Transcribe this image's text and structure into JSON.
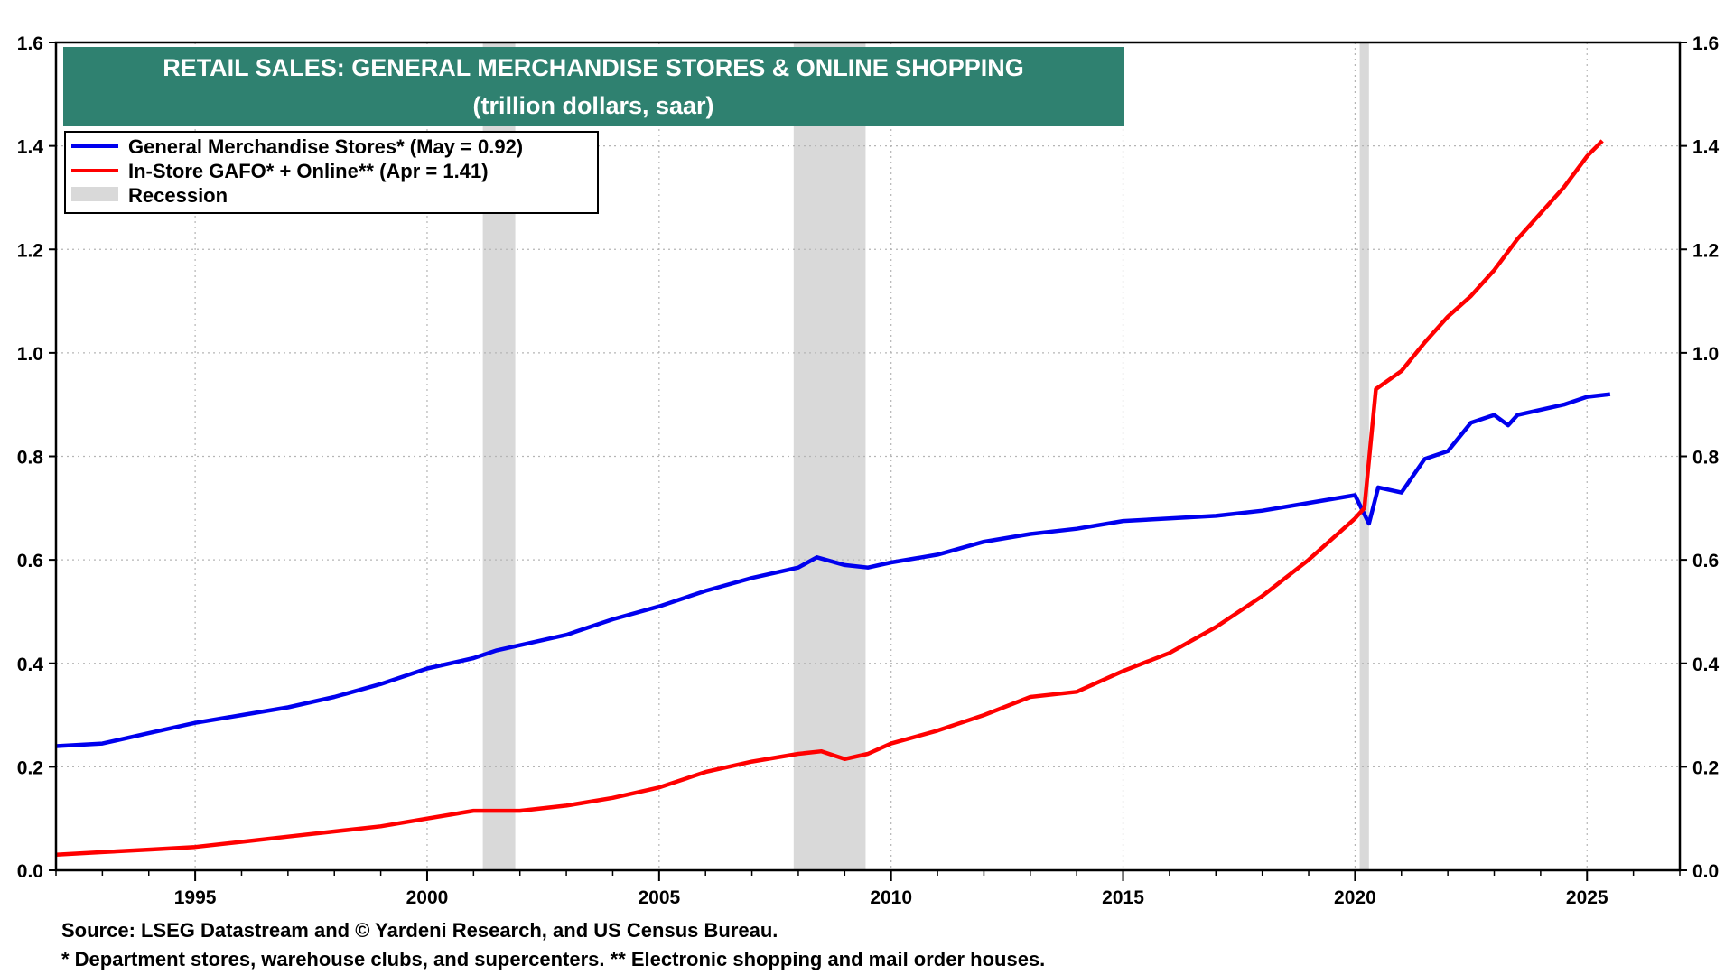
{
  "chart_data": {
    "type": "line",
    "title": "RETAIL SALES: GENERAL MERCHANDISE STORES & ONLINE SHOPPING",
    "subtitle": "(trillion dollars, saar)",
    "xlim": [
      1992.0,
      2027.0
    ],
    "ylim": [
      0.0,
      1.6
    ],
    "x_ticks": [
      "1995",
      "2000",
      "2005",
      "2010",
      "2015",
      "2020",
      "2025"
    ],
    "y_ticks": [
      "0.0",
      "0.2",
      "0.4",
      "0.6",
      "0.8",
      "1.0",
      "1.2",
      "1.4",
      "1.6"
    ],
    "grid": true,
    "legend_position": "top-left",
    "recession_label": "Recession",
    "recession_color": "#d9d9d9",
    "recessions": [
      [
        2001.2,
        2001.9
      ],
      [
        2007.9,
        2009.45
      ],
      [
        2020.1,
        2020.3
      ]
    ],
    "series": [
      {
        "name": "General Merchandise Stores* (May = 0.92)",
        "color": "#0000ee",
        "points": [
          [
            1992.0,
            0.24
          ],
          [
            1993.0,
            0.245
          ],
          [
            1994.0,
            0.265
          ],
          [
            1995.0,
            0.285
          ],
          [
            1996.0,
            0.3
          ],
          [
            1997.0,
            0.315
          ],
          [
            1998.0,
            0.335
          ],
          [
            1999.0,
            0.36
          ],
          [
            2000.0,
            0.39
          ],
          [
            2001.0,
            0.41
          ],
          [
            2001.5,
            0.425
          ],
          [
            2002.0,
            0.435
          ],
          [
            2003.0,
            0.455
          ],
          [
            2004.0,
            0.485
          ],
          [
            2005.0,
            0.51
          ],
          [
            2006.0,
            0.54
          ],
          [
            2007.0,
            0.565
          ],
          [
            2008.0,
            0.585
          ],
          [
            2008.4,
            0.605
          ],
          [
            2009.0,
            0.59
          ],
          [
            2009.5,
            0.585
          ],
          [
            2010.0,
            0.595
          ],
          [
            2011.0,
            0.61
          ],
          [
            2012.0,
            0.635
          ],
          [
            2013.0,
            0.65
          ],
          [
            2014.0,
            0.66
          ],
          [
            2015.0,
            0.675
          ],
          [
            2016.0,
            0.68
          ],
          [
            2017.0,
            0.685
          ],
          [
            2018.0,
            0.695
          ],
          [
            2019.0,
            0.71
          ],
          [
            2020.0,
            0.725
          ],
          [
            2020.3,
            0.67
          ],
          [
            2020.5,
            0.74
          ],
          [
            2021.0,
            0.73
          ],
          [
            2021.5,
            0.795
          ],
          [
            2022.0,
            0.81
          ],
          [
            2022.5,
            0.865
          ],
          [
            2023.0,
            0.88
          ],
          [
            2023.3,
            0.86
          ],
          [
            2023.5,
            0.88
          ],
          [
            2024.0,
            0.89
          ],
          [
            2024.5,
            0.9
          ],
          [
            2025.0,
            0.915
          ],
          [
            2025.5,
            0.92
          ]
        ]
      },
      {
        "name": "In-Store GAFO* + Online**  (Apr = 1.41)",
        "color": "#ff0000",
        "points": [
          [
            1992.0,
            0.03
          ],
          [
            1993.0,
            0.035
          ],
          [
            1994.0,
            0.04
          ],
          [
            1995.0,
            0.045
          ],
          [
            1996.0,
            0.055
          ],
          [
            1997.0,
            0.065
          ],
          [
            1998.0,
            0.075
          ],
          [
            1999.0,
            0.085
          ],
          [
            2000.0,
            0.1
          ],
          [
            2001.0,
            0.115
          ],
          [
            2001.5,
            0.115
          ],
          [
            2002.0,
            0.115
          ],
          [
            2003.0,
            0.125
          ],
          [
            2004.0,
            0.14
          ],
          [
            2005.0,
            0.16
          ],
          [
            2006.0,
            0.19
          ],
          [
            2007.0,
            0.21
          ],
          [
            2008.0,
            0.225
          ],
          [
            2008.5,
            0.23
          ],
          [
            2009.0,
            0.215
          ],
          [
            2009.5,
            0.225
          ],
          [
            2010.0,
            0.245
          ],
          [
            2011.0,
            0.27
          ],
          [
            2012.0,
            0.3
          ],
          [
            2013.0,
            0.335
          ],
          [
            2014.0,
            0.345
          ],
          [
            2015.0,
            0.385
          ],
          [
            2016.0,
            0.42
          ],
          [
            2017.0,
            0.47
          ],
          [
            2018.0,
            0.53
          ],
          [
            2018.5,
            0.565
          ],
          [
            2019.0,
            0.6
          ],
          [
            2019.5,
            0.64
          ],
          [
            2020.0,
            0.68
          ],
          [
            2020.2,
            0.7
          ],
          [
            2020.45,
            0.93
          ],
          [
            2021.0,
            0.965
          ],
          [
            2021.5,
            1.02
          ],
          [
            2022.0,
            1.07
          ],
          [
            2022.5,
            1.11
          ],
          [
            2023.0,
            1.16
          ],
          [
            2023.5,
            1.22
          ],
          [
            2024.0,
            1.27
          ],
          [
            2024.5,
            1.32
          ],
          [
            2025.0,
            1.38
          ],
          [
            2025.33,
            1.41
          ]
        ]
      }
    ]
  },
  "footnotes": {
    "source": "Source: LSEG Datastream and © Yardeni Research, and US Census Bureau.",
    "notes": "* Department stores, warehouse clubs, and supercenters. ** Electronic shopping and mail order houses."
  }
}
